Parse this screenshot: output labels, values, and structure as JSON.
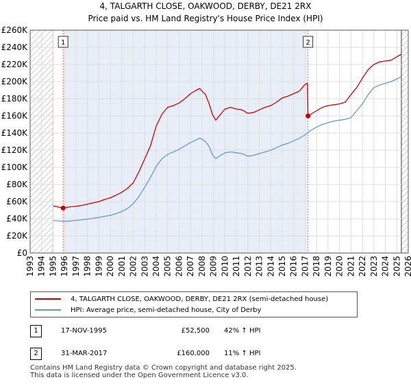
{
  "header": {
    "title_line1": "4, TALGARTH CLOSE, OAKWOOD, DERBY, DE21 2RX",
    "title_line2": "Price paid vs. HM Land Registry's House Price Index (HPI)"
  },
  "colors": {
    "price": "#cc0000",
    "hpi": "#6699cc",
    "hatch": "#d0d0d0",
    "band": "#e8eef8",
    "marker_line": "#ff6666"
  },
  "legend": {
    "price_label": "4, TALGARTH CLOSE, OAKWOOD, DERBY, DE21 2RX (semi-detached house)",
    "hpi_label": "HPI: Average price, semi-detached house, City of Derby"
  },
  "transactions": [
    {
      "num": "1",
      "date": "17-NOV-1995",
      "price": "£52,500",
      "hpi": "42% ↑ HPI"
    },
    {
      "num": "2",
      "date": "31-MAR-2017",
      "price": "£160,000",
      "hpi": "11% ↑ HPI"
    }
  ],
  "footer": {
    "line1": "Contains HM Land Registry data © Crown copyright and database right 2025.",
    "line2": "This data is licensed under the Open Government Licence v3.0."
  },
  "chart_data": {
    "type": "line",
    "xlim": [
      1993,
      2026
    ],
    "ylim": [
      0,
      260000
    ],
    "x_ticks": [
      1993,
      1994,
      1995,
      1996,
      1997,
      1998,
      1999,
      2000,
      2001,
      2002,
      2003,
      2004,
      2005,
      2006,
      2007,
      2008,
      2009,
      2010,
      2011,
      2012,
      2013,
      2014,
      2015,
      2016,
      2017,
      2018,
      2019,
      2020,
      2021,
      2022,
      2023,
      2024,
      2025,
      2026
    ],
    "y_ticks": [
      0,
      20000,
      40000,
      60000,
      80000,
      100000,
      120000,
      140000,
      160000,
      180000,
      200000,
      220000,
      240000,
      260000
    ],
    "y_tick_labels": [
      "£0",
      "£20K",
      "£40K",
      "£60K",
      "£80K",
      "£100K",
      "£120K",
      "£140K",
      "£160K",
      "£180K",
      "£200K",
      "£220K",
      "£240K",
      "£260K"
    ],
    "data_range": [
      1995.0,
      2025.4
    ],
    "series": [
      {
        "name": "4, TALGARTH CLOSE, OAKWOOD, DERBY, DE21 2RX (semi-detached house)",
        "x": [
          1995.0,
          1995.88,
          1996.5,
          1997.0,
          1997.5,
          1998.0,
          1998.5,
          1999.0,
          1999.5,
          2000.0,
          2000.5,
          2001.0,
          2001.5,
          2002.0,
          2002.5,
          2003.0,
          2003.5,
          2004.0,
          2004.5,
          2005.0,
          2005.5,
          2006.0,
          2006.5,
          2007.0,
          2007.5,
          2007.8,
          2008.0,
          2008.3,
          2008.6,
          2008.9,
          2009.2,
          2009.5,
          2010.0,
          2010.5,
          2011.0,
          2011.5,
          2012.0,
          2012.5,
          2013.0,
          2013.5,
          2014.0,
          2014.5,
          2015.0,
          2015.5,
          2016.0,
          2016.5,
          2017.0,
          2017.2,
          2017.25,
          2017.5,
          2018.0,
          2018.5,
          2019.0,
          2019.5,
          2020.0,
          2020.5,
          2021.0,
          2021.5,
          2022.0,
          2022.5,
          2023.0,
          2023.5,
          2024.0,
          2024.5,
          2025.0,
          2025.4
        ],
        "values": [
          55000,
          52500,
          54000,
          54500,
          55500,
          57000,
          58500,
          60000,
          62500,
          64500,
          67500,
          71000,
          75500,
          82000,
          95000,
          110000,
          125000,
          148000,
          162000,
          170000,
          172000,
          175000,
          180000,
          186000,
          190000,
          192000,
          189000,
          185000,
          175000,
          162000,
          155000,
          160000,
          168000,
          170000,
          168000,
          167000,
          163000,
          164000,
          167000,
          170000,
          172000,
          176000,
          181000,
          183000,
          186000,
          189000,
          197000,
          198000,
          160000,
          162000,
          166000,
          170000,
          172000,
          173000,
          174000,
          176000,
          185000,
          193000,
          204000,
          214000,
          220000,
          223000,
          224000,
          225000,
          229000,
          232000
        ]
      },
      {
        "name": "HPI: Average price, semi-detached house, City of Derby",
        "x": [
          1995.0,
          1995.5,
          1996.0,
          1996.5,
          1997.0,
          1997.5,
          1998.0,
          1998.5,
          1999.0,
          1999.5,
          2000.0,
          2000.5,
          2001.0,
          2001.5,
          2002.0,
          2002.5,
          2003.0,
          2003.5,
          2004.0,
          2004.5,
          2005.0,
          2005.5,
          2006.0,
          2006.5,
          2007.0,
          2007.5,
          2007.8,
          2008.0,
          2008.3,
          2008.6,
          2008.9,
          2009.2,
          2009.5,
          2010.0,
          2010.5,
          2011.0,
          2011.5,
          2012.0,
          2012.5,
          2013.0,
          2013.5,
          2014.0,
          2014.5,
          2015.0,
          2015.5,
          2016.0,
          2016.5,
          2017.0,
          2017.5,
          2018.0,
          2018.5,
          2019.0,
          2019.5,
          2020.0,
          2020.5,
          2021.0,
          2021.5,
          2022.0,
          2022.5,
          2023.0,
          2023.5,
          2024.0,
          2024.5,
          2025.0,
          2025.4
        ],
        "values": [
          38000,
          37500,
          37000,
          37500,
          38000,
          38800,
          39500,
          40500,
          41500,
          42800,
          44000,
          46000,
          48500,
          52000,
          57500,
          66000,
          77000,
          88000,
          101000,
          110000,
          115000,
          118000,
          121000,
          125000,
          129000,
          132000,
          134000,
          133000,
          130000,
          125000,
          115000,
          110000,
          113000,
          117000,
          118000,
          117000,
          116000,
          113000,
          114000,
          116000,
          118000,
          120000,
          123000,
          126000,
          128000,
          131000,
          134000,
          138000,
          143000,
          147000,
          150000,
          152000,
          154000,
          155000,
          156000,
          158000,
          166000,
          174000,
          185000,
          193000,
          196000,
          198000,
          200000,
          203000,
          206000
        ]
      }
    ],
    "markers": [
      {
        "label": "1",
        "x": 1995.88,
        "value": 52500
      },
      {
        "label": "2",
        "x": 2017.25,
        "value": 160000
      }
    ]
  }
}
